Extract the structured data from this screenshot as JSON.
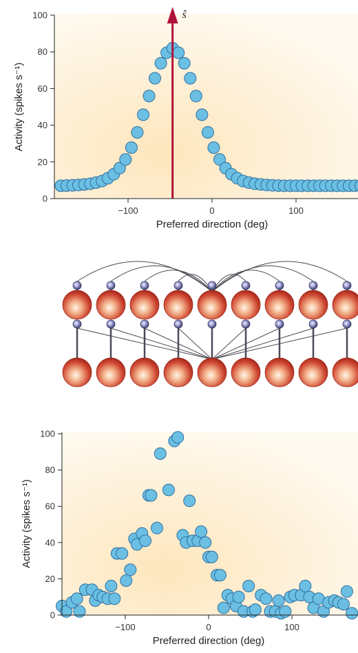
{
  "colors": {
    "dot_fill": "#6bbfe3",
    "dot_stroke": "#2e6fa0",
    "arrow": "#b0123a",
    "plot_bg_light": "#fff8ea",
    "plot_bg_warm": "#fdebc8",
    "neuron_fill": "#d24a34",
    "synapse_fill": "#8c8cc8"
  },
  "top_chart": {
    "arrow_label": "ŝ",
    "arrow_x": -47
  },
  "chart_data": [
    {
      "type": "scatter",
      "title": "",
      "xlabel": "Preferred direction (deg)",
      "ylabel": "Activity (spikes s⁻¹)",
      "xlim": [
        -180,
        180
      ],
      "ylim": [
        0,
        100
      ],
      "xticks": [
        -100,
        0,
        100
      ],
      "xtick_labels": [
        "−100",
        "0",
        "100"
      ],
      "yticks": [
        0,
        20,
        40,
        60,
        80,
        100
      ],
      "ytick_labels": [
        "0",
        "20",
        "40",
        "60",
        "80",
        "100"
      ],
      "grid": false,
      "x": [
        -180,
        -173,
        -166,
        -159,
        -152,
        -145,
        -138,
        -131,
        -124,
        -117,
        -110,
        -103,
        -96,
        -89,
        -82,
        -75,
        -68,
        -61,
        -54,
        -47,
        -40,
        -33,
        -26,
        -19,
        -12,
        -5,
        2,
        9,
        16,
        23,
        30,
        37,
        44,
        51,
        58,
        65,
        72,
        79,
        86,
        93,
        100,
        107,
        114,
        121,
        128,
        135,
        142,
        149,
        156,
        163,
        170,
        177
      ],
      "y": [
        7.0,
        7.1,
        7.2,
        7.4,
        7.7,
        8.1,
        8.7,
        9.6,
        11.1,
        13.3,
        16.6,
        21.3,
        27.8,
        36.1,
        45.7,
        55.9,
        65.6,
        73.8,
        79.5,
        82.0,
        79.5,
        73.8,
        65.6,
        55.9,
        45.7,
        36.1,
        27.8,
        21.3,
        16.6,
        13.3,
        11.1,
        9.6,
        8.7,
        8.1,
        7.7,
        7.4,
        7.2,
        7.1,
        7.0,
        7.0,
        7.0,
        7.0,
        7.0,
        7.0,
        7.0,
        7.0,
        7.0,
        7.0,
        7.0,
        7.0,
        7.0,
        7.0
      ]
    },
    {
      "type": "scatter",
      "title": "",
      "xlabel": "Preferred direction (deg)",
      "ylabel": "Activity (spikes s⁻¹)",
      "xlim": [
        -180,
        180
      ],
      "ylim": [
        0,
        100
      ],
      "xticks": [
        -100,
        0,
        100
      ],
      "xtick_labels": [
        "−100",
        "0",
        "100"
      ],
      "yticks": [
        0,
        20,
        40,
        60,
        80,
        100
      ],
      "ytick_labels": [
        "0",
        "20",
        "40",
        "60",
        "80",
        "100"
      ],
      "grid": false,
      "x": [
        -176,
        -171,
        -164,
        -158,
        -155,
        -148,
        -140,
        -136,
        -132,
        -127,
        -121,
        -117,
        -113,
        -110,
        -104,
        -99,
        -94,
        -89,
        -86,
        -80,
        -76,
        -72,
        -69,
        -62,
        -58,
        -48,
        -41,
        -37,
        -31,
        -27,
        -23,
        -19,
        -13,
        -9,
        -4,
        0,
        4,
        10,
        14,
        18,
        23,
        28,
        33,
        36,
        42,
        48,
        53,
        56,
        63,
        69,
        74,
        80,
        84,
        87,
        92,
        98,
        103,
        111,
        116,
        121,
        126,
        132,
        138,
        144,
        151,
        156,
        162,
        166,
        172
      ],
      "y": [
        5,
        2,
        7,
        9,
        2,
        14,
        14,
        8,
        11,
        10,
        9,
        16,
        9,
        34,
        34,
        19,
        25,
        42,
        39,
        45,
        41,
        66,
        66,
        48,
        89,
        69,
        96,
        98,
        44,
        40,
        63,
        41,
        41,
        46,
        40,
        32,
        32,
        22,
        22,
        4,
        11,
        9,
        5,
        10,
        2,
        16,
        2,
        3,
        11,
        9,
        2,
        2,
        8,
        1,
        2,
        10,
        11,
        11,
        16,
        10,
        4,
        9,
        2,
        7,
        8,
        7,
        6,
        13,
        1
      ]
    }
  ],
  "network": {
    "neuron_count": 9
  }
}
